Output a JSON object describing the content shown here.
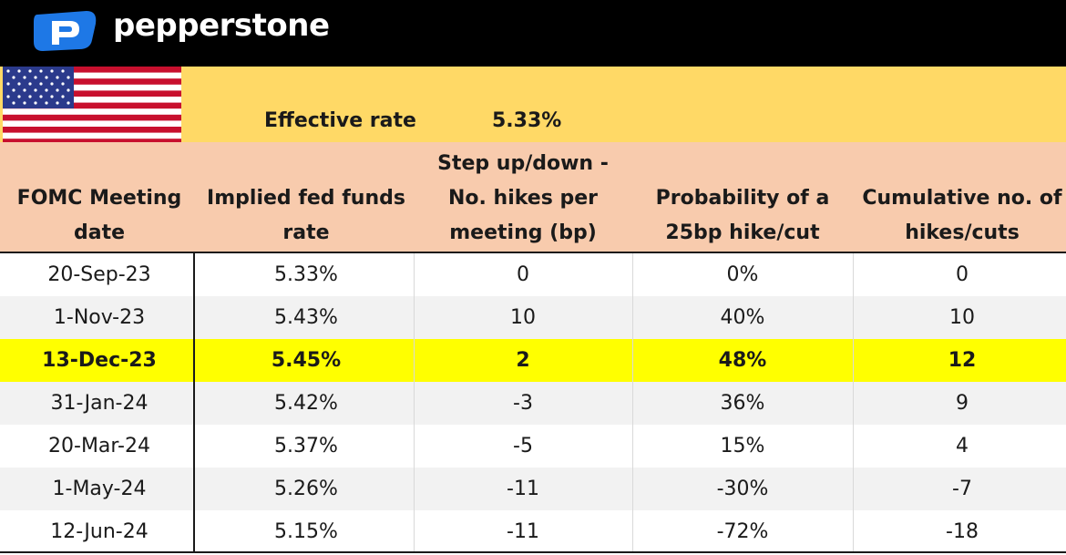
{
  "brand": {
    "name": "pepperstone",
    "logo_letter": "P"
  },
  "effective_rate": {
    "label": "Effective rate",
    "value": "5.33%"
  },
  "table": {
    "columns": [
      [
        "FOMC Meeting",
        "date"
      ],
      [
        "Implied fed funds",
        "rate"
      ],
      [
        "Step up/down -",
        "No. hikes per",
        "meeting (bp)"
      ],
      [
        "Probability of a",
        "25bp hike/cut"
      ],
      [
        "Cumulative no. of",
        "hikes/cuts"
      ]
    ],
    "rows": [
      [
        "20-Sep-23",
        "5.33%",
        "0",
        "0%",
        "0"
      ],
      [
        "1-Nov-23",
        "5.43%",
        "10",
        "40%",
        "10"
      ],
      [
        "13-Dec-23",
        "5.45%",
        "2",
        "48%",
        "12"
      ],
      [
        "31-Jan-24",
        "5.42%",
        "-3",
        "36%",
        "9"
      ],
      [
        "20-Mar-24",
        "5.37%",
        "-5",
        "15%",
        "4"
      ],
      [
        "1-May-24",
        "5.26%",
        "-11",
        "-30%",
        "-7"
      ],
      [
        "12-Jun-24",
        "5.15%",
        "-11",
        "-72%",
        "-18"
      ]
    ],
    "highlighted_row": 2
  },
  "colors": {
    "topbar": "#000000",
    "yellow_band": "#ffd966",
    "header_fill": "#f8cbad",
    "highlight": "#ffff00",
    "logo_blue": "#1e78e6"
  }
}
